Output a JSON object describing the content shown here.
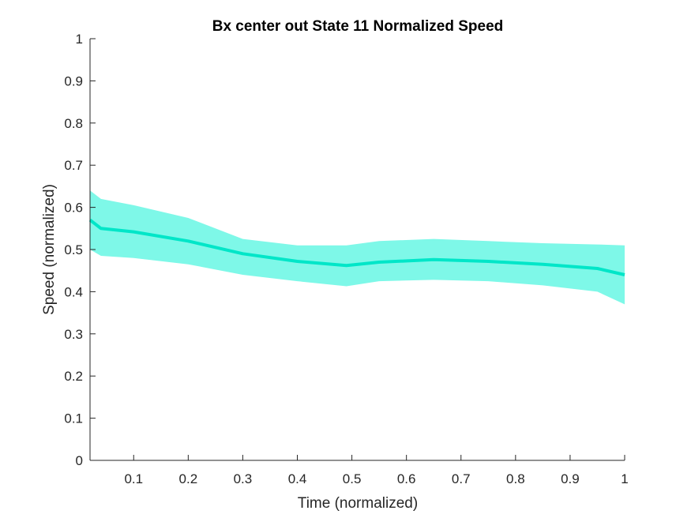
{
  "chart_data": {
    "type": "line",
    "title": "Bx  center out State 11 Normalized Speed",
    "xlabel": "Time (normalized)",
    "ylabel": "Speed (normalized)",
    "xlim": [
      0.02,
      1
    ],
    "ylim": [
      0,
      1
    ],
    "x_ticks": [
      0.1,
      0.2,
      0.3,
      0.4,
      0.5,
      0.6,
      0.7,
      0.8,
      0.9,
      1
    ],
    "x_tick_labels": [
      "0.1",
      "0.2",
      "0.3",
      "0.4",
      "0.5",
      "0.6",
      "0.7",
      "0.8",
      "0.9",
      "1"
    ],
    "y_ticks": [
      0,
      0.1,
      0.2,
      0.3,
      0.4,
      0.5,
      0.6,
      0.7,
      0.8,
      0.9,
      1
    ],
    "y_tick_labels": [
      "0",
      "0.1",
      "0.2",
      "0.3",
      "0.4",
      "0.5",
      "0.6",
      "0.7",
      "0.8",
      "0.9",
      "1"
    ],
    "grid": false,
    "colors": {
      "line": "#00e6c8",
      "band": "#7ef8e8"
    },
    "series": [
      {
        "x": [
          0.02,
          0.04,
          0.1,
          0.2,
          0.3,
          0.4,
          0.49,
          0.55,
          0.65,
          0.75,
          0.85,
          0.95,
          1.0
        ],
        "y": [
          0.57,
          0.55,
          0.542,
          0.52,
          0.49,
          0.472,
          0.462,
          0.47,
          0.476,
          0.472,
          0.465,
          0.455,
          0.44
        ],
        "lower": [
          0.5,
          0.485,
          0.48,
          0.465,
          0.44,
          0.425,
          0.413,
          0.425,
          0.428,
          0.425,
          0.415,
          0.4,
          0.37
        ],
        "upper": [
          0.64,
          0.62,
          0.605,
          0.575,
          0.525,
          0.51,
          0.51,
          0.52,
          0.525,
          0.52,
          0.515,
          0.512,
          0.51
        ]
      }
    ]
  }
}
